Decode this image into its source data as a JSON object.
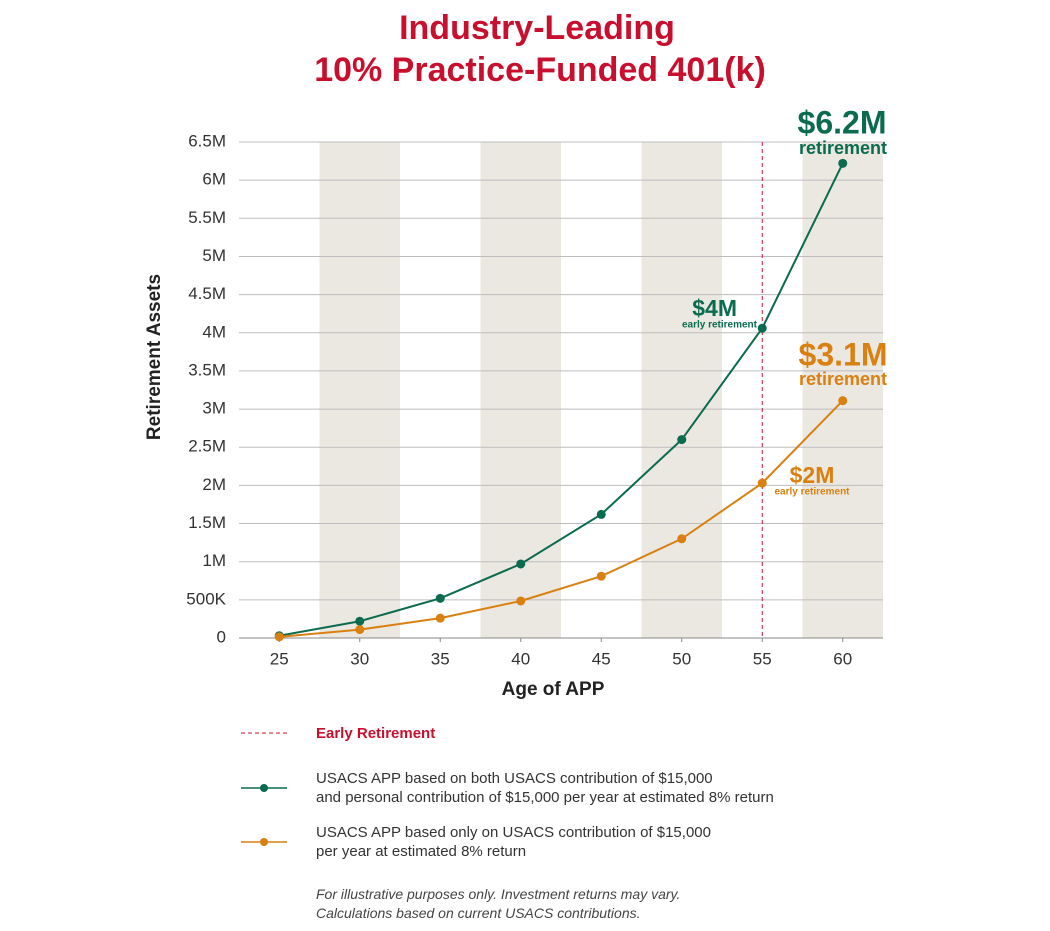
{
  "chart_data": {
    "type": "line",
    "title": [
      "Industry-Leading",
      "10% Practice-Funded 401(k)"
    ],
    "x_label": "Age of APP",
    "y_label": "Retirement Assets",
    "x": [
      25,
      30,
      35,
      40,
      45,
      50,
      55,
      60
    ],
    "xlim": [
      22.5,
      62.5
    ],
    "xticks": [
      25,
      30,
      35,
      40,
      45,
      50,
      55,
      60
    ],
    "ylim": [
      0,
      6500000
    ],
    "yticks": [
      0,
      {
        "value": 500000,
        "label": "500K"
      },
      {
        "value": 1000000,
        "label": "1M"
      },
      {
        "value": 1500000,
        "label": "1.5M"
      },
      {
        "value": 2000000,
        "label": "2M"
      },
      {
        "value": 2500000,
        "label": "2.5M"
      },
      {
        "value": 3000000,
        "label": "3M"
      },
      {
        "value": 3500000,
        "label": "3.5M"
      },
      {
        "value": 4000000,
        "label": "4M"
      },
      {
        "value": 4500000,
        "label": "4.5M"
      },
      {
        "value": 5000000,
        "label": "5M"
      },
      {
        "value": 5500000,
        "label": "5.5M"
      },
      {
        "value": 6000000,
        "label": "6M"
      },
      {
        "value": 6500000,
        "label": "6.5M"
      }
    ],
    "grid": true,
    "band_color": "#ebe7e1",
    "series": [
      {
        "name": "USACS APP based on both USACS contribution of $15,000\nand personal contribution of $15,000 per year at estimated 8% return",
        "color": "#0b6b4f",
        "values": [
          30000,
          220000,
          520000,
          970000,
          1620000,
          2600000,
          4060000,
          6220000
        ]
      },
      {
        "name": "USACS APP based only on USACS contribution of $15,000\nper year at estimated 8% return",
        "color": "#d98010",
        "values": [
          15000,
          110000,
          260000,
          485000,
          810000,
          1300000,
          2030000,
          3110000
        ]
      }
    ],
    "reference_line": {
      "x": 55,
      "label": "Early Retirement",
      "color": "#c8102e"
    },
    "annotations": [
      {
        "text": "$6.2M",
        "subtext": "retirement",
        "color": "#0b6b4f"
      },
      {
        "text": "$4M",
        "subtext": "early retirement",
        "color": "#0b6b4f"
      },
      {
        "text": "$3.1M",
        "subtext": "retirement",
        "color": "#d98010"
      },
      {
        "text": "$2M",
        "subtext": "early retirement",
        "color": "#d98010"
      }
    ],
    "footnote": "For illustrative purposes only. Investment returns may vary.\nCalculations based on current USACS contributions."
  }
}
